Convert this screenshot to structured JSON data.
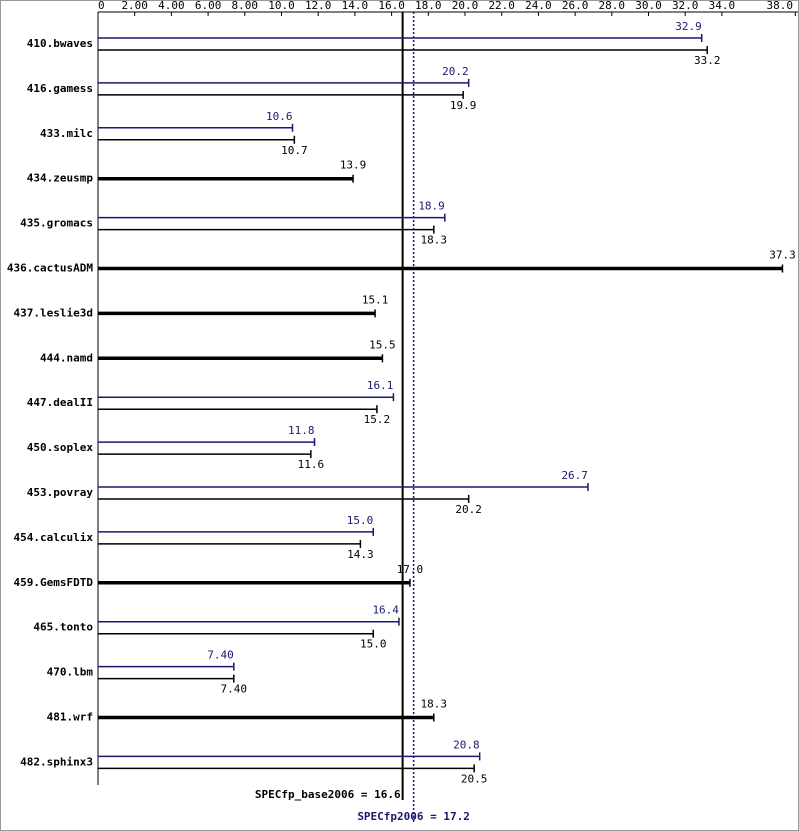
{
  "chart_data": {
    "type": "bar",
    "orientation": "horizontal",
    "categories": [
      "410.bwaves",
      "416.gamess",
      "433.milc",
      "434.zeusmp",
      "435.gromacs",
      "436.cactusADM",
      "437.leslie3d",
      "444.namd",
      "447.dealII",
      "450.soplex",
      "453.povray",
      "454.calculix",
      "459.GemsFDTD",
      "465.tonto",
      "470.lbm",
      "481.wrf",
      "482.sphinx3"
    ],
    "series": [
      {
        "color": "#000000",
        "values": [
          33.2,
          19.9,
          10.7,
          13.9,
          18.3,
          37.3,
          15.1,
          15.5,
          15.2,
          11.6,
          20.2,
          14.3,
          17.0,
          15.0,
          7.4,
          18.3,
          20.5
        ],
        "value_labels": [
          "33.2",
          "19.9",
          "10.7",
          "13.9",
          "18.3",
          "37.3",
          "15.1",
          "15.5",
          "15.2",
          "11.6",
          "20.2",
          "14.3",
          "17.0",
          "15.0",
          "7.40",
          "18.3",
          "20.5"
        ]
      },
      {
        "color": "#191970",
        "values": [
          32.9,
          20.2,
          10.6,
          null,
          18.9,
          null,
          null,
          null,
          16.1,
          11.8,
          26.7,
          15.0,
          null,
          16.4,
          7.4,
          null,
          20.8
        ],
        "value_labels": [
          "32.9",
          "20.2",
          "10.6",
          null,
          "18.9",
          null,
          null,
          null,
          "16.1",
          "11.8",
          "26.7",
          "15.0",
          null,
          "16.4",
          "7.40",
          null,
          "20.8"
        ]
      }
    ],
    "xlim": [
      0,
      38
    ],
    "xticks": [
      0,
      {
        "value": 2,
        "label": "2.00"
      },
      {
        "value": 4,
        "label": "4.00"
      },
      {
        "value": 6,
        "label": "6.00"
      },
      {
        "value": 8,
        "label": "8.00"
      },
      {
        "value": 10,
        "label": "10.0"
      },
      {
        "value": 12,
        "label": "12.0"
      },
      {
        "value": 14,
        "label": "14.0"
      },
      {
        "value": 16,
        "label": "16.0"
      },
      {
        "value": 18,
        "label": "18.0"
      },
      {
        "value": 20,
        "label": "20.0"
      },
      {
        "value": 22,
        "label": "22.0"
      },
      {
        "value": 24,
        "label": "24.0"
      },
      {
        "value": 26,
        "label": "26.0"
      },
      {
        "value": 28,
        "label": "28.0"
      },
      {
        "value": 30,
        "label": "30.0"
      },
      {
        "value": 32,
        "label": "32.0"
      },
      {
        "value": 34,
        "label": "34.0"
      },
      {
        "value": 38,
        "label": "38.0"
      }
    ],
    "reference_lines": [
      {
        "value": 16.6,
        "label": "SPECfp_base2006 = 16.6",
        "color": "#000000",
        "dashed": false
      },
      {
        "value": 17.2,
        "label": "SPECfp2006 = 17.2",
        "color": "#191970",
        "dashed": true
      }
    ]
  }
}
